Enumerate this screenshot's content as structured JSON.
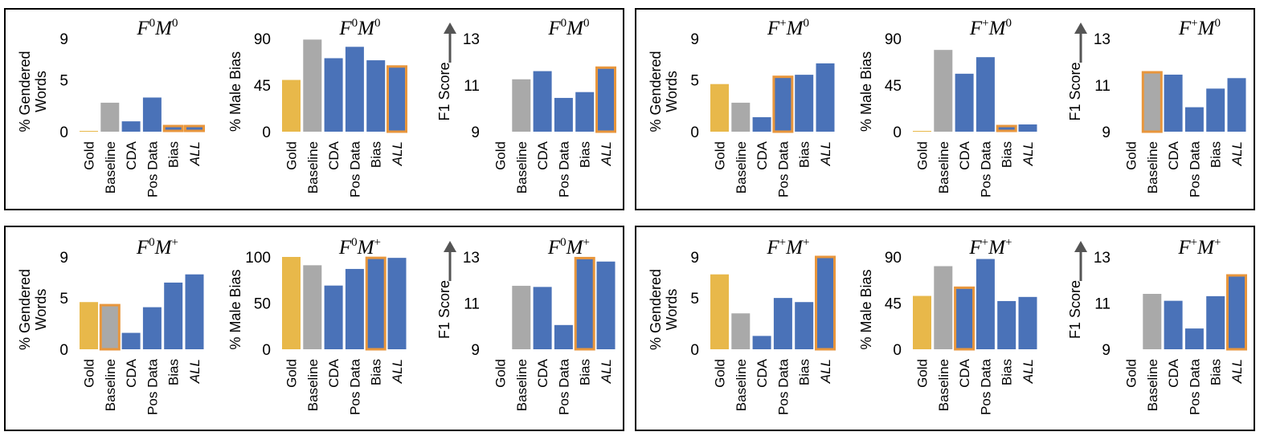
{
  "colors": {
    "gold": "#E8B84A",
    "baseline": "#A9A9A9",
    "method": "#4A72B8",
    "highlight": "#E8963C",
    "arrow": "#555555"
  },
  "chart_data": [
    {
      "type": "bar",
      "title_base": "F",
      "title_f": "0",
      "title_m": "0",
      "title_mid": "M",
      "ylabel": [
        "% Gendered",
        "Words"
      ],
      "yticks": [
        "0",
        "5",
        "9"
      ],
      "ylim": [
        0,
        9
      ],
      "categories": [
        "Gold",
        "Baseline",
        "CDA",
        "Pos Data",
        "Bias",
        "ALL"
      ],
      "values": [
        0.05,
        2.8,
        1.0,
        3.3,
        0.45,
        0.45
      ],
      "highlight": [
        4,
        5
      ],
      "arrow": false
    },
    {
      "type": "bar",
      "title_base": "F",
      "title_f": "0",
      "title_m": "0",
      "title_mid": "M",
      "ylabel": [
        "% Male Bias"
      ],
      "yticks": [
        "0",
        "45",
        "90"
      ],
      "ylim": [
        0,
        90
      ],
      "categories": [
        "Gold",
        "Baseline",
        "CDA",
        "Pos Data",
        "Bias",
        "ALL"
      ],
      "values": [
        50,
        89,
        71,
        82,
        69,
        63
      ],
      "highlight": [
        5
      ],
      "arrow": false
    },
    {
      "type": "bar",
      "title_base": "F",
      "title_f": "0",
      "title_m": "0",
      "title_mid": "M",
      "ylabel": [
        "F1 Score"
      ],
      "yticks": [
        "9",
        "11",
        "13"
      ],
      "ylim": [
        9,
        13
      ],
      "categories": [
        "Gold",
        "Baseline",
        "CDA",
        "Pos Data",
        "Bias",
        "ALL"
      ],
      "values": [
        null,
        11.25,
        11.6,
        10.45,
        10.7,
        11.75
      ],
      "highlight": [
        5
      ],
      "arrow": true
    },
    {
      "type": "bar",
      "title_base": "F",
      "title_f": "+",
      "title_m": "0",
      "title_mid": "M",
      "ylabel": [
        "% Gendered",
        "Words"
      ],
      "yticks": [
        "0",
        "5",
        "9"
      ],
      "ylim": [
        0,
        9
      ],
      "categories": [
        "Gold",
        "Baseline",
        "CDA",
        "Pos Data",
        "Bias",
        "ALL"
      ],
      "values": [
        4.6,
        2.8,
        1.4,
        5.3,
        5.5,
        6.6
      ],
      "highlight": [
        3
      ],
      "arrow": false
    },
    {
      "type": "bar",
      "title_base": "F",
      "title_f": "+",
      "title_m": "0",
      "title_mid": "M",
      "ylabel": [
        "% Male Bias"
      ],
      "yticks": [
        "0",
        "45",
        "90"
      ],
      "ylim": [
        0,
        90
      ],
      "categories": [
        "Gold",
        "Baseline",
        "CDA",
        "Pos Data",
        "Bias",
        "ALL"
      ],
      "values": [
        0.5,
        79,
        56,
        72,
        3,
        7
      ],
      "highlight": [
        4
      ],
      "arrow": false
    },
    {
      "type": "bar",
      "title_base": "F",
      "title_f": "+",
      "title_m": "0",
      "title_mid": "M",
      "ylabel": [
        "F1 Score"
      ],
      "yticks": [
        "9",
        "11",
        "13"
      ],
      "ylim": [
        9,
        13
      ],
      "categories": [
        "Gold",
        "Baseline",
        "CDA",
        "Pos Data",
        "Bias",
        "ALL"
      ],
      "values": [
        null,
        11.55,
        11.45,
        10.05,
        10.85,
        11.3
      ],
      "highlight": [
        1
      ],
      "arrow": true
    },
    {
      "type": "bar",
      "title_base": "F",
      "title_f": "0",
      "title_m": "+",
      "title_mid": "M",
      "ylabel": [
        "% Gendered",
        "Words"
      ],
      "yticks": [
        "0",
        "5",
        "9"
      ],
      "ylim": [
        0,
        9
      ],
      "categories": [
        "Gold",
        "Baseline",
        "CDA",
        "Pos Data",
        "Bias",
        "ALL"
      ],
      "values": [
        4.6,
        4.3,
        1.6,
        4.1,
        6.5,
        7.3
      ],
      "highlight": [
        1
      ],
      "arrow": false
    },
    {
      "type": "bar",
      "title_base": "F",
      "title_f": "0",
      "title_m": "+",
      "title_mid": "M",
      "ylabel": [
        "% Male Bias"
      ],
      "yticks": [
        "0",
        "50",
        "100"
      ],
      "ylim": [
        0,
        100
      ],
      "categories": [
        "Gold",
        "Baseline",
        "CDA",
        "Pos Data",
        "Bias",
        "ALL"
      ],
      "values": [
        100,
        91,
        69,
        87,
        99,
        99
      ],
      "highlight": [
        4
      ],
      "arrow": false
    },
    {
      "type": "bar",
      "title_base": "F",
      "title_f": "0",
      "title_m": "+",
      "title_mid": "M",
      "ylabel": [
        "F1 Score"
      ],
      "yticks": [
        "9",
        "11",
        "13"
      ],
      "ylim": [
        9,
        13
      ],
      "categories": [
        "Gold",
        "Baseline",
        "CDA",
        "Pos Data",
        "Bias",
        "ALL"
      ],
      "values": [
        null,
        11.75,
        11.7,
        10.05,
        12.95,
        12.8
      ],
      "highlight": [
        4
      ],
      "arrow": true
    },
    {
      "type": "bar",
      "title_base": "F",
      "title_f": "+",
      "title_m": "+",
      "title_mid": "M",
      "ylabel": [
        "% Gendered",
        "Words"
      ],
      "yticks": [
        "0",
        "5",
        "9"
      ],
      "ylim": [
        0,
        9
      ],
      "categories": [
        "Gold",
        "Baseline",
        "CDA",
        "Pos Data",
        "Bias",
        "ALL"
      ],
      "values": [
        7.3,
        3.5,
        1.3,
        5.0,
        4.6,
        9.0
      ],
      "highlight": [
        5
      ],
      "arrow": false
    },
    {
      "type": "bar",
      "title_base": "F",
      "title_f": "+",
      "title_m": "+",
      "title_mid": "M",
      "ylabel": [
        "% Male Bias"
      ],
      "yticks": [
        "0",
        "45",
        "90"
      ],
      "ylim": [
        0,
        90
      ],
      "categories": [
        "Gold",
        "Baseline",
        "CDA",
        "Pos Data",
        "Bias",
        "ALL"
      ],
      "values": [
        52,
        81,
        60,
        88,
        47,
        51
      ],
      "highlight": [
        2
      ],
      "arrow": false
    },
    {
      "type": "bar",
      "title_base": "F",
      "title_f": "+",
      "title_m": "+",
      "title_mid": "M",
      "ylabel": [
        "F1 Score"
      ],
      "yticks": [
        "9",
        "11",
        "13"
      ],
      "ylim": [
        9,
        13
      ],
      "categories": [
        "Gold",
        "Baseline",
        "CDA",
        "Pos Data",
        "Bias",
        "ALL"
      ],
      "values": [
        null,
        11.4,
        11.1,
        9.9,
        11.3,
        12.2
      ],
      "highlight": [
        5
      ],
      "arrow": true
    }
  ]
}
